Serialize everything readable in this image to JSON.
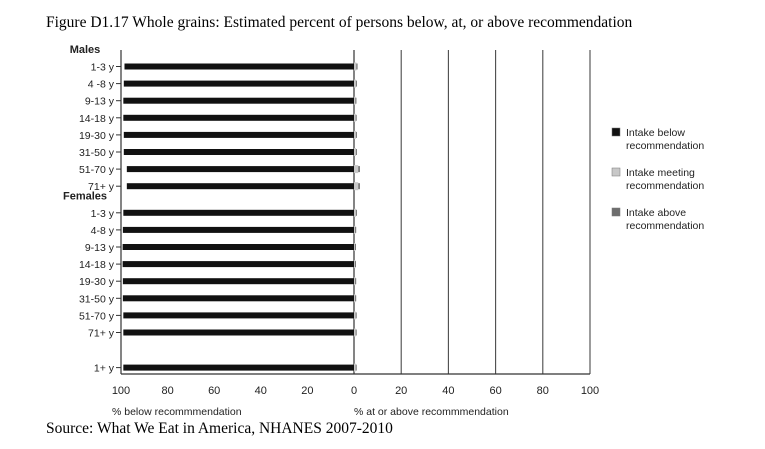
{
  "chart_data": {
    "type": "bar",
    "title": "Figure D1.17 Whole grains: Estimated percent of persons below, at, or above recommendation",
    "source": "Source: What We Eat in America, NHANES 2007-2010",
    "xlabel_left": "% below recommmendation",
    "xlabel_right": "% at or above recommmendation",
    "left_ticks": [
      "100",
      "80",
      "60",
      "40",
      "20",
      "0"
    ],
    "right_ticks": [
      "20",
      "40",
      "60",
      "80",
      "100"
    ],
    "xlim": [
      -100,
      100
    ],
    "grid": true,
    "legend_position": "right",
    "groups": [
      {
        "name": "Males",
        "rows": [
          {
            "label": "1-3 y",
            "below": 98.5,
            "meeting": 1.0,
            "above": 0.5
          },
          {
            "label": "4 -8 y",
            "below": 98.8,
            "meeting": 0.8,
            "above": 0.4
          },
          {
            "label": "9-13 y",
            "below": 99.0,
            "meeting": 0.6,
            "above": 0.4
          },
          {
            "label": "14-18 y",
            "below": 99.0,
            "meeting": 0.7,
            "above": 0.3
          },
          {
            "label": "19-30 y",
            "below": 98.8,
            "meeting": 0.8,
            "above": 0.4
          },
          {
            "label": "31-50 y",
            "below": 98.8,
            "meeting": 0.8,
            "above": 0.4
          },
          {
            "label": "51-70 y",
            "below": 97.5,
            "meeting": 1.8,
            "above": 0.7
          },
          {
            "label": "71+ y",
            "below": 97.5,
            "meeting": 1.8,
            "above": 0.7
          }
        ]
      },
      {
        "name": "Females",
        "rows": [
          {
            "label": "1-3 y",
            "below": 99.0,
            "meeting": 0.8,
            "above": 0.3
          },
          {
            "label": "4-8 y",
            "below": 99.2,
            "meeting": 0.5,
            "above": 0.3
          },
          {
            "label": "9-13 y",
            "below": 99.3,
            "meeting": 0.4,
            "above": 0.3
          },
          {
            "label": "14-18 y",
            "below": 99.3,
            "meeting": 0.4,
            "above": 0.3
          },
          {
            "label": "19-30 y",
            "below": 99.2,
            "meeting": 0.5,
            "above": 0.3
          },
          {
            "label": "31-50 y",
            "below": 99.2,
            "meeting": 0.5,
            "above": 0.3
          },
          {
            "label": "51-70 y",
            "below": 99.0,
            "meeting": 0.7,
            "above": 0.3
          },
          {
            "label": "71+ y",
            "below": 99.0,
            "meeting": 0.7,
            "above": 0.3
          }
        ]
      },
      {
        "name": "",
        "rows": [
          {
            "label": "1+ y",
            "below": 99.0,
            "meeting": 0.7,
            "above": 0.3
          }
        ]
      }
    ],
    "legend": [
      {
        "key": "below",
        "line1": "Intake below",
        "line2": "recommendation",
        "color": "#111111"
      },
      {
        "key": "meeting",
        "line1": "Intake meeting",
        "line2": "recommendation",
        "color": "#c8c8c8"
      },
      {
        "key": "above",
        "line1": "Intake above",
        "line2": "recommendation",
        "color": "#6e6e6e"
      }
    ]
  }
}
